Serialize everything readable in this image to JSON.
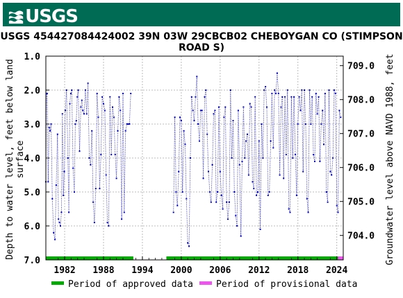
{
  "header": {
    "logo_text": "USGS",
    "title": "USGS 454427084424002 39N 03W 29CBCB02 CHEBOYGAN CO (STIMPSON ROAD S)"
  },
  "colors": {
    "banner": "#006b54",
    "data_points": "#0000bb",
    "approved": "#00aa00",
    "provisional": "#ee55ee"
  },
  "chart_data": {
    "type": "scatter",
    "title": "USGS 454427084424002 39N 03W 29CBCB02 CHEBOYGAN CO (STIMPSON ROAD S)",
    "ylabel_left_line1": "Depth to water level, feet below land",
    "ylabel_left_line2": "surface",
    "ylabel_right": "Groundwater level above NAVD 1988, feet",
    "xlim": [
      1979.1,
      2025.0
    ],
    "ylim_left": [
      7.0,
      1.0
    ],
    "ylim_right": [
      703.28,
      709.28
    ],
    "x_ticks": [
      "1982",
      "1988",
      "1994",
      "2000",
      "2006",
      "2012",
      "2018",
      "2024"
    ],
    "x_tick_values": [
      1982,
      1988,
      1994,
      2000,
      2006,
      2012,
      2018,
      2024
    ],
    "y_ticks_left": [
      "1.0",
      "2.0",
      "3.0",
      "4.0",
      "5.0",
      "6.0",
      "7.0"
    ],
    "y_tick_values_left": [
      1,
      2,
      3,
      4,
      5,
      6,
      7
    ],
    "y_ticks_right": [
      "704.0",
      "705.0",
      "706.0",
      "707.0",
      "708.0",
      "709.0"
    ],
    "y_tick_values_right": [
      704,
      705,
      706,
      707,
      708,
      709
    ],
    "grid": true,
    "series": [
      {
        "name": "Depth to water level",
        "segments": [
          {
            "x": [
              1979.1,
              1979.2,
              1979.3,
              1979.45,
              1979.6,
              1979.75,
              1979.9,
              1980.1,
              1980.3,
              1980.5,
              1980.7,
              1980.9,
              1981.05,
              1981.2,
              1981.35,
              1981.5,
              1981.65,
              1981.8,
              1981.95,
              1982.1,
              1982.3,
              1982.5,
              1982.65,
              1982.8,
              1982.95,
              1983.1,
              1983.3,
              1983.5,
              1983.65,
              1983.8,
              1983.95,
              1984.1,
              1984.3,
              1984.5,
              1984.65,
              1984.8,
              1985.0,
              1985.2,
              1985.4,
              1985.6,
              1985.8,
              1986.0,
              1986.2,
              1986.4,
              1986.6,
              1986.8,
              1987.0,
              1987.2,
              1987.4,
              1987.6,
              1987.8,
              1988.0,
              1988.2,
              1988.4,
              1988.6,
              1988.8,
              1989.0,
              1989.2,
              1989.4,
              1989.6,
              1989.8,
              1990.0,
              1990.2,
              1990.4,
              1990.6,
              1990.8,
              1991.0,
              1991.2,
              1991.4,
              1991.6,
              1991.8,
              1992.0,
              1992.2
            ],
            "y": [
              4.7,
              2.1,
              2.1,
              4.7,
              3.1,
              3.2,
              3.0,
              5.2,
              6.2,
              6.4,
              4.8,
              3.3,
              5.8,
              5.9,
              6.0,
              5.6,
              2.7,
              5.1,
              4.4,
              2.6,
              2.0,
              4.0,
              5.6,
              2.4,
              2.1,
              2.0,
              4.3,
              5.0,
              3.0,
              2.9,
              2.2,
              2.0,
              3.8,
              2.5,
              2.3,
              2.6,
              2.7,
              2.0,
              2.7,
              1.8,
              4.0,
              4.2,
              3.2,
              5.3,
              5.9,
              4.9,
              2.1,
              2.8,
              4.9,
              3.9,
              2.2,
              2.4,
              2.6,
              4.5,
              5.9,
              6.0,
              2.2,
              3.9,
              2.5,
              2.8,
              3.9,
              4.6,
              3.2,
              2.2,
              2.6,
              5.8,
              2.1,
              5.6,
              3.2,
              3.0,
              3.0,
              3.0,
              2.1
            ]
          },
          {
            "x": [
              1998.8,
              1999.0,
              1999.2,
              1999.4,
              1999.6,
              1999.8,
              2000.0,
              2000.2,
              2000.4,
              2000.6,
              2000.8,
              2001.0,
              2001.2,
              2001.4,
              2001.6,
              2001.8,
              2002.0,
              2002.2,
              2002.4,
              2002.6,
              2002.8,
              2003.0,
              2003.2,
              2003.4,
              2003.6,
              2003.8,
              2004.0,
              2004.2,
              2004.4,
              2004.6,
              2004.8,
              2005.0,
              2005.2,
              2005.4,
              2005.6,
              2005.8,
              2006.0,
              2006.2,
              2006.4,
              2006.6,
              2006.8,
              2007.0,
              2007.2,
              2007.4,
              2007.6,
              2007.8,
              2008.0,
              2008.2,
              2008.4,
              2008.6,
              2008.8,
              2009.0,
              2009.2,
              2009.4,
              2009.6,
              2009.8,
              2010.0,
              2010.2,
              2010.4,
              2010.6,
              2010.8,
              2011.0,
              2011.2,
              2011.4,
              2011.6,
              2011.8,
              2012.0,
              2012.2,
              2012.4,
              2012.6,
              2012.8,
              2013.0,
              2013.2,
              2013.4,
              2013.6,
              2013.8,
              2014.0,
              2014.2,
              2014.4,
              2014.6,
              2014.8,
              2015.0,
              2015.2,
              2015.4,
              2015.6,
              2015.8,
              2016.0,
              2016.2,
              2016.4,
              2016.6,
              2016.8,
              2017.0,
              2017.2,
              2017.4,
              2017.6,
              2017.8,
              2018.0,
              2018.2,
              2018.4,
              2018.6,
              2018.8,
              2019.0,
              2019.2,
              2019.4,
              2019.6,
              2019.8,
              2020.0,
              2020.2,
              2020.4,
              2020.6,
              2020.8,
              2021.0,
              2021.2,
              2021.4,
              2021.6,
              2021.8,
              2022.0,
              2022.2,
              2022.4,
              2022.6,
              2022.8,
              2023.0,
              2023.2,
              2023.4,
              2023.6,
              2023.8,
              2024.0,
              2024.2,
              2024.4,
              2024.6
            ],
            "y": [
              5.6,
              2.8,
              5.0,
              5.4,
              4.4,
              2.8,
              2.9,
              5.0,
              3.2,
              3.6,
              5.2,
              6.5,
              6.6,
              4.0,
              2.2,
              2.6,
              2.9,
              2.2,
              1.6,
              3.0,
              3.5,
              2.6,
              2.6,
              4.6,
              2.2,
              2.0,
              3.3,
              4.4,
              5.0,
              5.3,
              4.2,
              2.7,
              2.6,
              5.3,
              5.0,
              2.5,
              4.4,
              5.1,
              5.5,
              2.8,
              2.5,
              5.3,
              5.8,
              5.3,
              2.0,
              4.0,
              2.9,
              5.0,
              5.7,
              6.0,
              2.6,
              4.2,
              6.3,
              4.1,
              2.5,
              4.0,
              3.5,
              3.3,
              4.5,
              2.4,
              2.5,
              4.7,
              4.9,
              2.2,
              5.1,
              5.0,
              3.5,
              6.1,
              3.0,
              4.0,
              2.0,
              1.9,
              2.5,
              5.1,
              5.0,
              3.5,
              2.1,
              3.7,
              2.0,
              2.1,
              1.5,
              2.1,
              4.5,
              2.5,
              2.2,
              4.6,
              2.2,
              3.9,
              2.0,
              5.5,
              5.6,
              2.2,
              4.0,
              2.2,
              3.9,
              5.1,
              3.0,
              2.2,
              2.6,
              2.0,
              4.4,
              2.0,
              3.0,
              5.2,
              5.6,
              2.0,
              3.0,
              2.2,
              3.9,
              4.1,
              2.1,
              2.7,
              2.2,
              4.1,
              3.0,
              2.6,
              3.6,
              2.1,
              5.0,
              5.3,
              2.0,
              4.4,
              4.5,
              4.0,
              2.0,
              2.1,
              5.4,
              5.6,
              2.6,
              2.8
            ]
          }
        ]
      }
    ],
    "approval_bars": [
      {
        "status": "approved",
        "start": 1979.1,
        "end": 1992.6
      },
      {
        "status": "approved",
        "start": 1997.7,
        "end": 2024.2
      },
      {
        "status": "provisional",
        "start": 2024.2,
        "end": 2025.0
      }
    ],
    "legend": [
      {
        "label": "Period of approved data",
        "status": "approved"
      },
      {
        "label": "Period of provisional data",
        "status": "provisional"
      }
    ],
    "legend_position": "bottom"
  }
}
